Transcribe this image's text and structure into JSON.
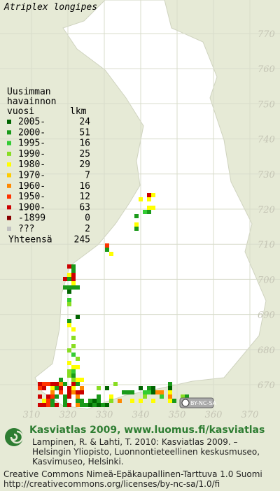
{
  "title": "Atriplex longipes",
  "legend": {
    "heading": [
      "Uusimman",
      "havainnon",
      "vuosi"
    ],
    "count_heading": "lkm",
    "entries": [
      {
        "label": "2005-",
        "count": 24,
        "color": "#006400"
      },
      {
        "label": "2000-",
        "count": 51,
        "color": "#1a9a1a"
      },
      {
        "label": "1995-",
        "count": 16,
        "color": "#33cc33"
      },
      {
        "label": "1990-",
        "count": 25,
        "color": "#88dd22"
      },
      {
        "label": "1980-",
        "count": 29,
        "color": "#ffff00"
      },
      {
        "label": "1970-",
        "count": 7,
        "color": "#ffcc00"
      },
      {
        "label": "1960-",
        "count": 16,
        "color": "#ff8800"
      },
      {
        "label": "1950-",
        "count": 12,
        "color": "#ff3300"
      },
      {
        "label": "1900-",
        "count": 63,
        "color": "#cc0000"
      },
      {
        "label": "-1899",
        "count": 0,
        "color": "#880000"
      },
      {
        "label": "???",
        "count": 2,
        "color": "#c0c0c0"
      }
    ],
    "total_label": "Yhteensä",
    "total": 245
  },
  "grid_north": [
    770,
    760,
    750,
    740,
    730,
    720,
    710,
    700,
    690,
    680,
    670
  ],
  "grid_east": [
    310,
    320,
    330,
    340,
    350,
    360,
    370
  ],
  "license_badge": "BY-NC-SA",
  "footer": {
    "headline": "Kasviatlas 2009, www.luomus.fi/kasviatlas",
    "citation": [
      "Lampinen, R. & Lahti, T. 2010: Kasviatlas 2009. –",
      "Helsingin Yliopisto, Luonnontieteellinen keskusmuseo,",
      "Kasvimuseo, Helsinki."
    ],
    "license": [
      "Creative Commons Nimeä-Epäkaupallinen-Tarttuva 1.0 Suomi",
      "http://creativecommons.org/licenses/by-nc-sa/1.0/fi"
    ]
  }
}
